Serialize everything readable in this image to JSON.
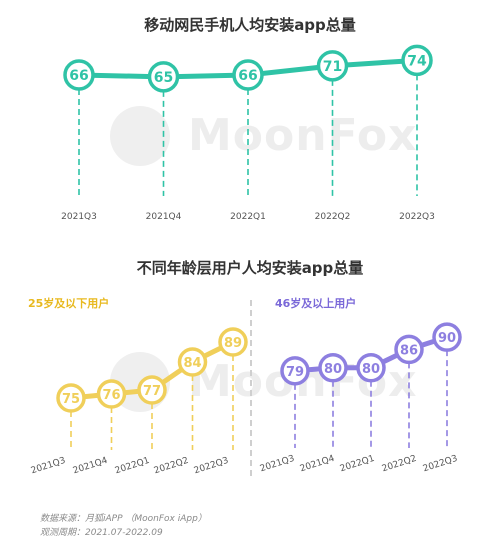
{
  "title_top": "移动网民手机人均安装app总量",
  "title_bottom": "不同年龄层用户人均安装app总量",
  "watermark": "MoonFox",
  "source_line1": "数据来源：月狐iAPP （MoonFox iApp）",
  "source_line2": "观测周期：2021.07-2022.09",
  "colors": {
    "teal": "#2fc3a6",
    "yellow": "#f0cf5a",
    "purple": "#8d7fe0",
    "divider": "#cfcfcf"
  },
  "chart_data": [
    {
      "type": "line",
      "title": "移动网民手机人均安装app总量",
      "categories": [
        "2021Q3",
        "2021Q4",
        "2022Q1",
        "2022Q2",
        "2022Q3"
      ],
      "values": [
        66,
        65,
        66,
        71,
        74
      ],
      "ylim": [
        60,
        78
      ],
      "grid": false,
      "color": "#2fc3a6"
    },
    {
      "type": "line",
      "subtitle": "25岁及以下用户",
      "categories": [
        "2021Q3",
        "2021Q4",
        "2022Q1",
        "2022Q2",
        "2022Q3"
      ],
      "values": [
        75,
        76,
        77,
        84,
        89
      ],
      "ylim": [
        72,
        92
      ],
      "grid": false,
      "color": "#f0cf5a"
    },
    {
      "type": "line",
      "subtitle": "46岁及以上用户",
      "categories": [
        "2021Q3",
        "2021Q4",
        "2022Q1",
        "2022Q2",
        "2022Q3"
      ],
      "values": [
        79,
        80,
        80,
        86,
        90
      ],
      "ylim": [
        76,
        93
      ],
      "grid": false,
      "color": "#8d7fe0"
    }
  ]
}
